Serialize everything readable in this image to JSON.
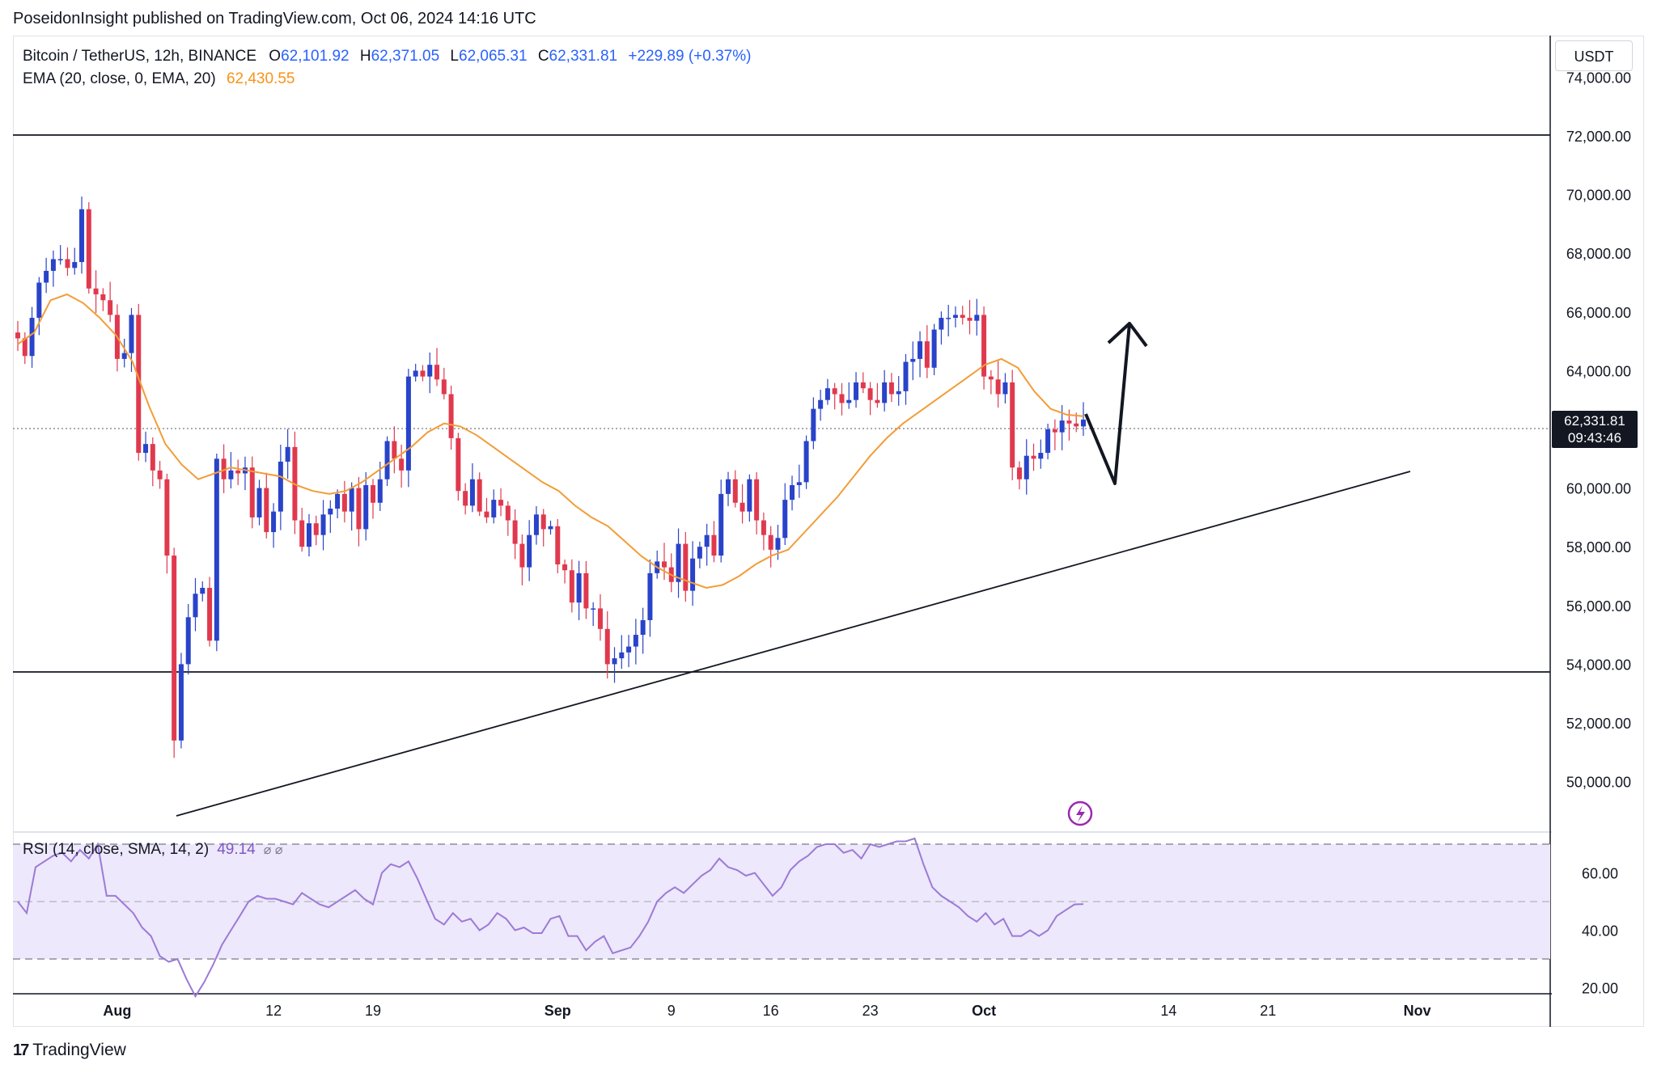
{
  "header": {
    "published": "PoseidonInsight published on TradingView.com, Oct 06, 2024 14:16 UTC"
  },
  "legend": {
    "symbol": "Bitcoin / TetherUS, 12h, BINANCE",
    "o_key": "O",
    "o_val": "62,101.92",
    "h_key": "H",
    "h_val": "62,371.05",
    "l_key": "L",
    "l_val": "62,065.31",
    "c_key": "C",
    "c_val": "62,331.81",
    "change": "+229.89 (+0.37%)",
    "ema_label": "EMA (20, close, 0, EMA, 20)",
    "ema_value": "62,430.55"
  },
  "rsi_legend": {
    "label": "RSI (14, close, SMA, 14, 2)",
    "value": "49.14",
    "icons": "⌀ ⌀"
  },
  "currency": "USDT",
  "price_tag": {
    "price": "62,331.81",
    "countdown": "09:43:46"
  },
  "brand": {
    "logo_glyph": "17",
    "name": "TradingView"
  },
  "colors": {
    "up": "#2943c9",
    "down": "#e0394e",
    "ema": "#f29d38",
    "rsi_line": "#9c7ad6",
    "rsi_band": "#ede8fb"
  },
  "chart_data": {
    "type": "candlestick",
    "interval": "12h",
    "price_axis": {
      "ticks": [
        50000,
        52000,
        54000,
        56000,
        58000,
        60000,
        62000,
        64000,
        66000,
        68000,
        70000,
        72000,
        74000
      ],
      "tick_labels": [
        "50,000.00",
        "52,000.00",
        "54,000.00",
        "56,000.00",
        "58,000.00",
        "60,000.00",
        "62,000.00",
        "64,000.00",
        "66,000.00",
        "68,000.00",
        "70,000.00",
        "72,000.00",
        "74,000.00"
      ]
    },
    "rsi_axis": {
      "ticks": [
        20,
        40,
        60
      ],
      "tick_labels": [
        "20.00",
        "40.00",
        "60.00"
      ],
      "band": [
        30,
        70
      ],
      "mid": 50
    },
    "time_axis": {
      "ticks": [
        {
          "label": "Aug",
          "idx": 14,
          "bold": true
        },
        {
          "label": "12",
          "idx": 36,
          "bold": false
        },
        {
          "label": "19",
          "idx": 50,
          "bold": false
        },
        {
          "label": "Sep",
          "idx": 76,
          "bold": true
        },
        {
          "label": "9",
          "idx": 92,
          "bold": false
        },
        {
          "label": "16",
          "idx": 106,
          "bold": false
        },
        {
          "label": "23",
          "idx": 120,
          "bold": false
        },
        {
          "label": "Oct",
          "idx": 136,
          "bold": true
        },
        {
          "label": "14",
          "idx": 162,
          "bold": false
        },
        {
          "label": "21",
          "idx": 176,
          "bold": false
        },
        {
          "label": "Nov",
          "idx": 197,
          "bold": true
        }
      ]
    },
    "closes": [
      65100,
      64500,
      65800,
      67000,
      67400,
      67800,
      67800,
      67500,
      67700,
      69500,
      66800,
      66600,
      66400,
      65900,
      64400,
      64600,
      65900,
      61200,
      61500,
      60600,
      60300,
      57700,
      51400,
      54000,
      55600,
      56400,
      56600,
      54800,
      61000,
      60300,
      60600,
      60500,
      60700,
      59000,
      60000,
      58500,
      59200,
      60900,
      61400,
      58900,
      58000,
      58800,
      58400,
      59100,
      59300,
      59800,
      59200,
      60000,
      58600,
      60100,
      59500,
      60300,
      61600,
      61000,
      60600,
      63800,
      64000,
      63800,
      64200,
      63700,
      63200,
      61700,
      59900,
      59400,
      60300,
      59200,
      59000,
      59600,
      59400,
      58900,
      58100,
      57300,
      58400,
      59100,
      58600,
      58700,
      57400,
      57200,
      56100,
      57100,
      55900,
      55900,
      55200,
      54000,
      54200,
      54400,
      54600,
      55000,
      55500,
      57100,
      57500,
      57300,
      56800,
      58100,
      56500,
      57600,
      58000,
      58400,
      57700,
      59800,
      60300,
      59500,
      59200,
      60300,
      58900,
      58400,
      57900,
      58300,
      59600,
      60100,
      60200,
      61600,
      62700,
      63000,
      63400,
      63200,
      62900,
      63000,
      63600,
      63400,
      63000,
      62900,
      63600,
      63200,
      63300,
      64300,
      64400,
      65000,
      64100,
      65400,
      65800,
      65800,
      65900,
      65800,
      65700,
      65900,
      63800,
      63700,
      63200,
      63600,
      60700,
      60300,
      61100,
      61000,
      61200,
      62000,
      61900,
      62300,
      62200,
      62100,
      62332
    ],
    "ema_approx": [
      64900,
      65300,
      66400,
      66600,
      66300,
      65800,
      65200,
      64300,
      62800,
      61500,
      60800,
      60300,
      60500,
      60700,
      60600,
      60500,
      60400,
      60100,
      59900,
      59800,
      59900,
      60200,
      60600,
      61000,
      61400,
      61900,
      62200,
      62100,
      61800,
      61400,
      61000,
      60600,
      60200,
      59900,
      59400,
      59000,
      58700,
      58200,
      57700,
      57300,
      57000,
      56800,
      56600,
      56700,
      57000,
      57400,
      57700,
      57900,
      58500,
      59100,
      59700,
      60400,
      61100,
      61700,
      62200,
      62600,
      63000,
      63400,
      63800,
      64200,
      64400,
      64100,
      63300,
      62700,
      62500,
      62450
    ],
    "rsi_approx": [
      50,
      46,
      62,
      64,
      66,
      67,
      64,
      68,
      65,
      70,
      52,
      52,
      49,
      46,
      41,
      38,
      31,
      29,
      30,
      23,
      17,
      22,
      28,
      35,
      40,
      45,
      50,
      52,
      51,
      51,
      50,
      49,
      53,
      51,
      49,
      48,
      50,
      52,
      54,
      51,
      49,
      60,
      63,
      62,
      64,
      58,
      51,
      44,
      42,
      46,
      43,
      44,
      40,
      42,
      46,
      44,
      40,
      41,
      39,
      39,
      44,
      45,
      38,
      38,
      33,
      36,
      38,
      32,
      33,
      34,
      38,
      43,
      50,
      53,
      55,
      53,
      56,
      59,
      61,
      65,
      62,
      61,
      59,
      60,
      56,
      52,
      55,
      61,
      64,
      66,
      69,
      70,
      70,
      67,
      68,
      65,
      70,
      69,
      70,
      71,
      71,
      72,
      63,
      55,
      52,
      50,
      48,
      45,
      43,
      46,
      42,
      44,
      38,
      38,
      40,
      38,
      40,
      45,
      47,
      49,
      49.14
    ]
  }
}
